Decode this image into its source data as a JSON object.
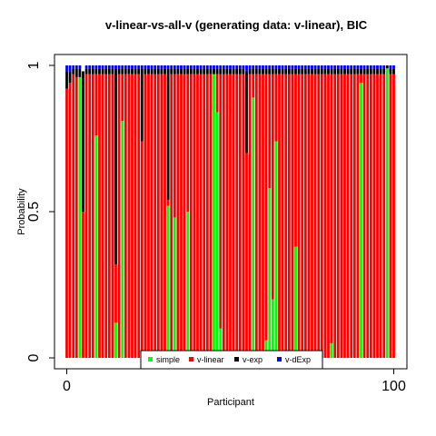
{
  "chart_data": {
    "type": "bar",
    "stacked": true,
    "title": "v-linear-vs-all-v (generating data: v-linear), BIC",
    "xlabel": "Participant",
    "ylabel": "Probability",
    "xlim": [
      0,
      100
    ],
    "ylim": [
      0,
      1
    ],
    "xticks": [
      {
        "v": 0,
        "label": "0"
      },
      {
        "v": 100,
        "label": "100"
      }
    ],
    "yticks": [
      {
        "v": 0,
        "label": "0"
      },
      {
        "v": 0.5,
        "label": "0.5"
      },
      {
        "v": 1,
        "label": "1"
      }
    ],
    "legend_position": "bottom-center",
    "colors": {
      "simple": "#00ff00",
      "v-linear": "#ff0000",
      "v-exp": "#000000",
      "v-dExp": "#0000ff"
    },
    "series": [
      {
        "name": "simple",
        "values": [
          0,
          0,
          0,
          0,
          0.96,
          0,
          0,
          0,
          0,
          0.76,
          0,
          0,
          0,
          0,
          0,
          0.12,
          0,
          0.81,
          0,
          0,
          0,
          0,
          0,
          0,
          0,
          0,
          0,
          0,
          0,
          0,
          0,
          0.52,
          0,
          0.48,
          0,
          0,
          0,
          0.5,
          0,
          0,
          0,
          0,
          0,
          0,
          0,
          0.97,
          0.84,
          0.1,
          0,
          0,
          0,
          0,
          0,
          0,
          0,
          0,
          0,
          0.89,
          0,
          0,
          0,
          0.06,
          0.58,
          0.2,
          0.74,
          0,
          0,
          0,
          0,
          0,
          0.38,
          0,
          0,
          0,
          0,
          0,
          0,
          0,
          0,
          0,
          0,
          0.05,
          0,
          0,
          0,
          0,
          0,
          0,
          0,
          0,
          0.94,
          0,
          0,
          0,
          0,
          0,
          0,
          0,
          0.99,
          0,
          0
        ]
      },
      {
        "name": "v-linear",
        "values": [
          0.92,
          0.94,
          0.97,
          0.96,
          0,
          0.5,
          0.97,
          0.97,
          0.97,
          0.21,
          0.97,
          0.97,
          0.97,
          0.97,
          0.97,
          0.2,
          0.97,
          0.16,
          0.97,
          0.97,
          0.97,
          0.97,
          0.97,
          0.74,
          0.97,
          0.97,
          0.97,
          0.97,
          0.97,
          0.97,
          0.97,
          0.02,
          0.97,
          0.49,
          0.97,
          0.97,
          0.97,
          0.47,
          0.97,
          0.97,
          0.97,
          0.97,
          0.97,
          0.97,
          0.97,
          0,
          0.13,
          0.87,
          0.97,
          0.97,
          0.97,
          0.97,
          0.97,
          0.97,
          0.97,
          0.7,
          0.97,
          0.08,
          0.97,
          0.97,
          0.97,
          0.91,
          0.39,
          0.77,
          0.23,
          0.97,
          0.97,
          0.97,
          0.97,
          0.97,
          0.59,
          0.97,
          0.97,
          0.97,
          0.97,
          0.97,
          0.97,
          0.97,
          0.97,
          0.97,
          0.97,
          0.92,
          0.97,
          0.97,
          0.97,
          0.97,
          0.97,
          0.97,
          0.97,
          0.97,
          0.03,
          0.97,
          0.97,
          0.97,
          0.97,
          0.97,
          0.97,
          0.97,
          0,
          0.97,
          0.97
        ]
      },
      {
        "name": "v-exp",
        "values": [
          0.06,
          0.04,
          0.02,
          0.03,
          0.03,
          0.48,
          0.02,
          0.02,
          0.02,
          0.02,
          0.02,
          0.02,
          0.02,
          0.02,
          0.02,
          0.67,
          0.02,
          0.02,
          0.02,
          0.02,
          0.02,
          0.02,
          0.02,
          0.25,
          0.02,
          0.02,
          0.02,
          0.02,
          0.02,
          0.02,
          0.02,
          0.45,
          0.02,
          0.02,
          0.02,
          0.02,
          0.02,
          0.02,
          0.02,
          0.02,
          0.02,
          0.02,
          0.02,
          0.02,
          0.02,
          0.02,
          0.02,
          0.02,
          0.02,
          0.02,
          0.02,
          0.02,
          0.02,
          0.02,
          0.02,
          0.28,
          0.02,
          0.02,
          0.02,
          0.02,
          0.02,
          0.02,
          0.02,
          0.02,
          0.02,
          0.02,
          0.02,
          0.02,
          0.02,
          0.02,
          0.02,
          0.02,
          0.02,
          0.02,
          0.02,
          0.02,
          0.02,
          0.02,
          0.02,
          0.02,
          0.02,
          0.02,
          0.02,
          0.02,
          0.02,
          0.02,
          0.02,
          0.02,
          0.02,
          0.02,
          0.02,
          0.02,
          0.02,
          0.02,
          0.02,
          0.02,
          0.02,
          0.02,
          0.01,
          0.02,
          0.02
        ]
      },
      {
        "name": "v-dExp",
        "values": [
          0.02,
          0.02,
          0.01,
          0.01,
          0.01,
          0,
          0.01,
          0.01,
          0.01,
          0.01,
          0.01,
          0.01,
          0.01,
          0.01,
          0.01,
          0.01,
          0.01,
          0.01,
          0.01,
          0.01,
          0.01,
          0.01,
          0.01,
          0.01,
          0.01,
          0.01,
          0.01,
          0.01,
          0.01,
          0.01,
          0.01,
          0.01,
          0.01,
          0.01,
          0.01,
          0.01,
          0.01,
          0.01,
          0.01,
          0.01,
          0.01,
          0.01,
          0.01,
          0.01,
          0.01,
          0.01,
          0.01,
          0.01,
          0.01,
          0.01,
          0.01,
          0.01,
          0.01,
          0.01,
          0.01,
          0.02,
          0.01,
          0.01,
          0.01,
          0.01,
          0.01,
          0.01,
          0.01,
          0.01,
          0.01,
          0.01,
          0.01,
          0.01,
          0.01,
          0.01,
          0.01,
          0.01,
          0.01,
          0.01,
          0.01,
          0.01,
          0.01,
          0.01,
          0.01,
          0.01,
          0.01,
          0.01,
          0.01,
          0.01,
          0.01,
          0.01,
          0.01,
          0.01,
          0.01,
          0.01,
          0.01,
          0.01,
          0.01,
          0.01,
          0.01,
          0.01,
          0.01,
          0.01,
          0,
          0.01,
          0.01
        ]
      }
    ]
  }
}
